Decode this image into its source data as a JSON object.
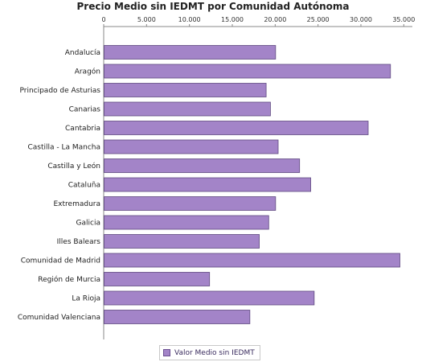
{
  "chart_data": {
    "type": "bar",
    "orientation": "horizontal",
    "title": "Precio Medio sin IEDMT por Comunidad Autónoma",
    "categories": [
      "Andalucía",
      "Aragón",
      "Principado de Asturias",
      "Canarias",
      "Cantabria",
      "Castilla - La Mancha",
      "Castilla y León",
      "Cataluña",
      "Extremadura",
      "Galicia",
      "Illes Balears",
      "Comunidad de Madrid",
      "Región de Murcia",
      "La Rioja",
      "Comunidad Valenciana"
    ],
    "series": [
      {
        "name": "Valor Medio sin IEDMT",
        "color": "#a384c8",
        "values": [
          20000,
          33400,
          18900,
          19400,
          30800,
          20300,
          22800,
          24100,
          20000,
          19200,
          18100,
          34500,
          12300,
          24500,
          17000
        ]
      }
    ],
    "xlim": [
      0,
      36000
    ],
    "xticks": [
      "0",
      "5.000",
      "10.000",
      "15.000",
      "20.000",
      "25.000",
      "30.000",
      "35.000"
    ],
    "xtick_values": [
      0,
      5000,
      10000,
      15000,
      20000,
      25000,
      30000,
      35000
    ],
    "axis_position": "top",
    "grid": false,
    "legend_position": "bottom"
  }
}
